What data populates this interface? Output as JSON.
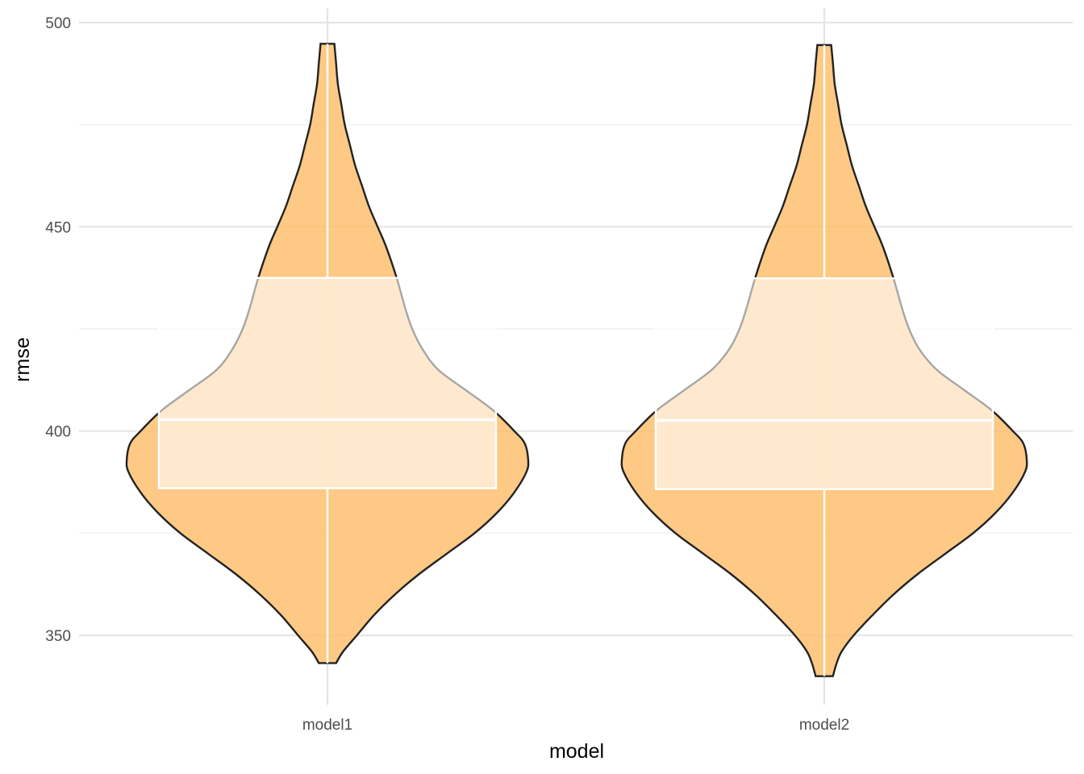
{
  "chart_data": {
    "type": "violin",
    "xlabel": "model",
    "ylabel": "rmse",
    "ylim": [
      331.5,
      501.5
    ],
    "y_ticks": [
      350,
      400,
      450,
      500
    ],
    "y_minor_ticks": [
      375,
      425,
      475
    ],
    "grid": true,
    "categories": [
      "model1",
      "model2"
    ],
    "fill_color": "#fdbf6f",
    "outline_color": "#222222",
    "box_color": "#ffffff",
    "series": [
      {
        "category": "model1",
        "min": 343.2,
        "max": 494.8,
        "q1": 386.0,
        "median": 402.8,
        "q3": 437.5,
        "density": [
          [
            343.2,
            0.05
          ],
          [
            346,
            0.09
          ],
          [
            350,
            0.17
          ],
          [
            355,
            0.27
          ],
          [
            360,
            0.39
          ],
          [
            365,
            0.53
          ],
          [
            370,
            0.69
          ],
          [
            375,
            0.85
          ],
          [
            380,
            0.98
          ],
          [
            385,
            1.08
          ],
          [
            390,
            1.15
          ],
          [
            393,
            1.16
          ],
          [
            397,
            1.14
          ],
          [
            400,
            1.08
          ],
          [
            405,
            0.96
          ],
          [
            410,
            0.8
          ],
          [
            415,
            0.64
          ],
          [
            420,
            0.55
          ],
          [
            425,
            0.49
          ],
          [
            430,
            0.45
          ],
          [
            437.5,
            0.4
          ],
          [
            445,
            0.34
          ],
          [
            450,
            0.29
          ],
          [
            455,
            0.24
          ],
          [
            460,
            0.2
          ],
          [
            465,
            0.16
          ],
          [
            470,
            0.13
          ],
          [
            475,
            0.1
          ],
          [
            480,
            0.08
          ],
          [
            485,
            0.06
          ],
          [
            490,
            0.05
          ],
          [
            494.8,
            0.04
          ]
        ]
      },
      {
        "category": "model2",
        "min": 340.0,
        "max": 494.5,
        "q1": 385.8,
        "median": 402.6,
        "q3": 437.4,
        "density": [
          [
            340.0,
            0.05
          ],
          [
            343,
            0.07
          ],
          [
            346,
            0.1
          ],
          [
            350,
            0.17
          ],
          [
            355,
            0.28
          ],
          [
            360,
            0.4
          ],
          [
            365,
            0.54
          ],
          [
            370,
            0.7
          ],
          [
            375,
            0.86
          ],
          [
            380,
            0.99
          ],
          [
            385,
            1.09
          ],
          [
            390,
            1.16
          ],
          [
            393,
            1.17
          ],
          [
            397,
            1.15
          ],
          [
            400,
            1.09
          ],
          [
            405,
            0.97
          ],
          [
            410,
            0.81
          ],
          [
            415,
            0.65
          ],
          [
            420,
            0.55
          ],
          [
            425,
            0.49
          ],
          [
            430,
            0.45
          ],
          [
            437.4,
            0.4
          ],
          [
            445,
            0.34
          ],
          [
            450,
            0.29
          ],
          [
            455,
            0.24
          ],
          [
            460,
            0.2
          ],
          [
            465,
            0.16
          ],
          [
            470,
            0.13
          ],
          [
            475,
            0.1
          ],
          [
            480,
            0.08
          ],
          [
            485,
            0.06
          ],
          [
            490,
            0.05
          ],
          [
            494.5,
            0.04
          ]
        ]
      }
    ]
  }
}
